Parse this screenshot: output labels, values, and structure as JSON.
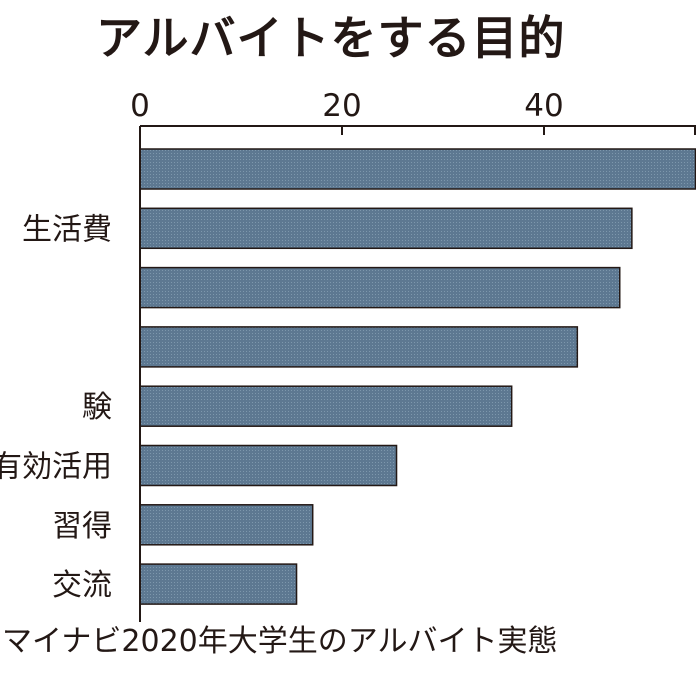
{
  "title": "アルバイトをする目的",
  "source": "マイナビ2020年大学生のアルバイト実態",
  "chart_data": {
    "type": "bar",
    "orientation": "horizontal",
    "title": "アルバイトをする目的",
    "xlim": [
      0,
      55
    ],
    "x_ticks": [
      0,
      20,
      40
    ],
    "categories": [
      "",
      "生活費",
      "",
      "",
      "験",
      "有効活用",
      "習得",
      "交流"
    ],
    "values": [
      55,
      48.7,
      47.5,
      43.3,
      36.8,
      25.4,
      17.1,
      15.5
    ],
    "grid": false,
    "legend": "none",
    "bar_color": "#5d7891"
  }
}
